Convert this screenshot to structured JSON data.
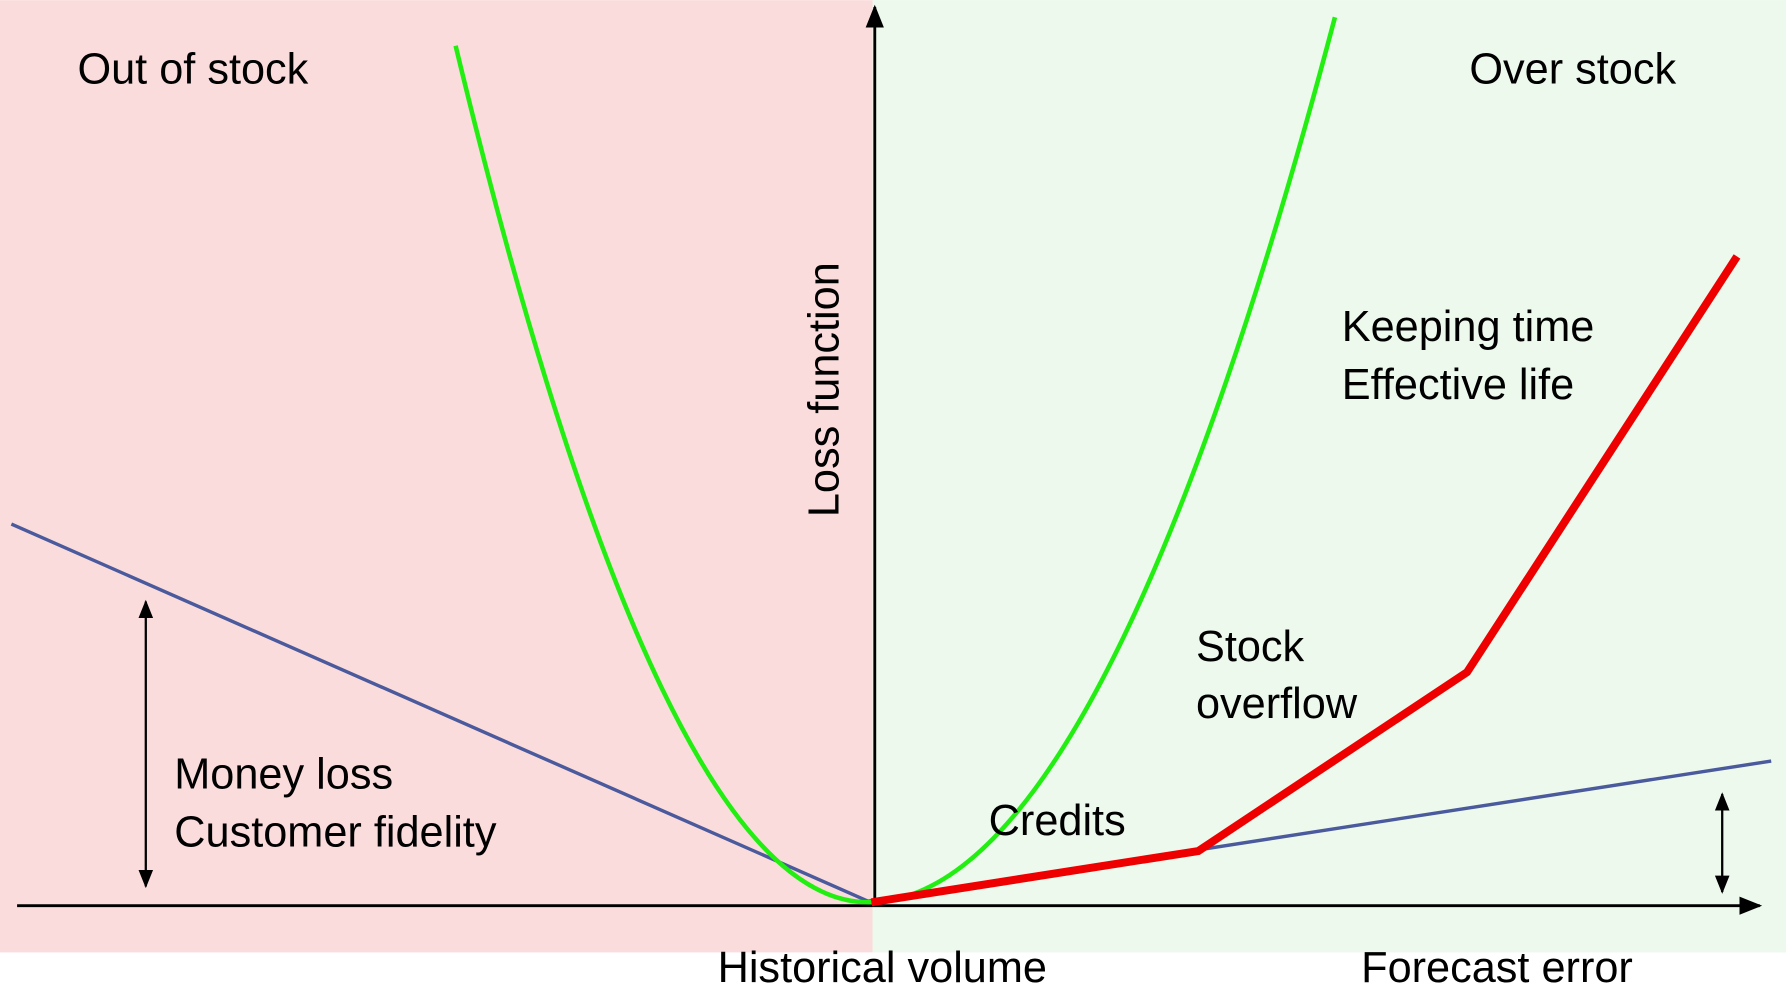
{
  "regions": {
    "left": "Out of stock",
    "right": "Over stock"
  },
  "axes": {
    "y_label": "Loss function",
    "x_label_left": "Historical volume",
    "x_label_right": "Forecast error"
  },
  "annotations": {
    "money": [
      "Money loss",
      "Customer fidelity"
    ],
    "credits": "Credits",
    "stock_overflow": [
      "Stock",
      "overflow"
    ],
    "keeping": [
      "Keeping time",
      "Effective life"
    ]
  }
}
